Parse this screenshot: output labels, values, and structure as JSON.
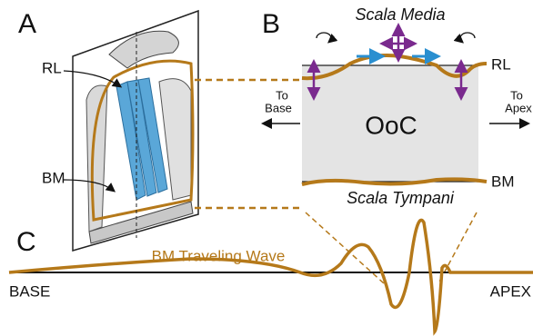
{
  "panels": {
    "a": {
      "label": "A",
      "rl_label": "RL",
      "bm_label": "BM"
    },
    "b": {
      "label": "B",
      "scala_media": "Scala Media",
      "to_base": [
        "To",
        "Base"
      ],
      "to_apex": [
        "To",
        "Apex"
      ],
      "ooc": "OoC",
      "rl_label": "RL",
      "bm_label": "BM",
      "scala_tympani": "Scala Tympani"
    },
    "c": {
      "label": "C",
      "wave_label": "BM Traveling Wave",
      "base": "BASE",
      "apex": "APEX"
    }
  }
}
